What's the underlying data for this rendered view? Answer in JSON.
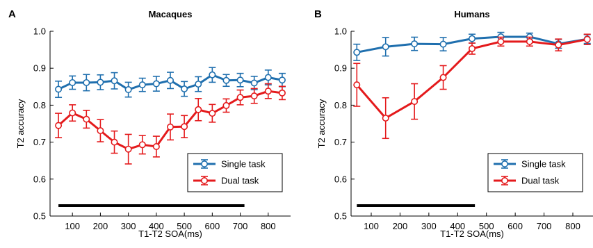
{
  "panels": [
    {
      "letter": "A",
      "title": "Macaques"
    },
    {
      "letter": "B",
      "title": "Humans"
    }
  ],
  "chart_data": [
    {
      "type": "line",
      "title": "Macaques",
      "panel_label": "A",
      "xlabel": "T1-T2 SOA(ms)",
      "ylabel": "T2 accuracy",
      "xlim": [
        20,
        880
      ],
      "ylim": [
        0.5,
        1.0
      ],
      "xticks": [
        100,
        200,
        300,
        400,
        500,
        600,
        700,
        800
      ],
      "yticks": [
        0.5,
        0.6,
        0.7,
        0.8,
        0.9,
        1.0
      ],
      "ytick_labels": [
        "0.5",
        "0.6",
        "0.7",
        "0.8",
        "0.9",
        "1.0"
      ],
      "grid": false,
      "legend_position": "lower-right",
      "significance_bar": [
        50,
        715
      ],
      "series": [
        {
          "name": "Single task",
          "color": "#1f6fae",
          "x": [
            50,
            100,
            150,
            200,
            250,
            300,
            350,
            400,
            450,
            500,
            550,
            600,
            650,
            700,
            750,
            800,
            850
          ],
          "y": [
            0.843,
            0.861,
            0.861,
            0.862,
            0.866,
            0.842,
            0.855,
            0.858,
            0.867,
            0.844,
            0.857,
            0.882,
            0.867,
            0.868,
            0.86,
            0.875,
            0.868
          ],
          "err": [
            0.022,
            0.018,
            0.022,
            0.02,
            0.022,
            0.02,
            0.018,
            0.02,
            0.022,
            0.02,
            0.02,
            0.02,
            0.016,
            0.018,
            0.018,
            0.02,
            0.018
          ]
        },
        {
          "name": "Dual task",
          "color": "#e41a1c",
          "x": [
            50,
            100,
            150,
            200,
            250,
            300,
            350,
            400,
            450,
            500,
            550,
            600,
            650,
            700,
            750,
            800,
            850
          ],
          "y": [
            0.745,
            0.779,
            0.762,
            0.731,
            0.7,
            0.681,
            0.693,
            0.688,
            0.741,
            0.742,
            0.788,
            0.778,
            0.799,
            0.821,
            0.825,
            0.838,
            0.833
          ],
          "err": [
            0.033,
            0.022,
            0.024,
            0.03,
            0.03,
            0.04,
            0.025,
            0.028,
            0.035,
            0.03,
            0.03,
            0.024,
            0.018,
            0.02,
            0.02,
            0.02,
            0.018
          ]
        }
      ]
    },
    {
      "type": "line",
      "title": "Humans",
      "panel_label": "B",
      "xlabel": "T1-T2 SOA(ms)",
      "ylabel": "T2 accuracy",
      "xlim": [
        30,
        870
      ],
      "ylim": [
        0.5,
        1.0
      ],
      "xticks": [
        100,
        200,
        300,
        400,
        500,
        600,
        700,
        800
      ],
      "yticks": [
        0.5,
        0.6,
        0.7,
        0.8,
        0.9,
        1.0
      ],
      "ytick_labels": [
        "0.5",
        "0.6",
        "0.7",
        "0.8",
        "0.9",
        "1.0"
      ],
      "grid": false,
      "legend_position": "lower-right",
      "significance_bar": [
        50,
        460
      ],
      "series": [
        {
          "name": "Single task",
          "color": "#1f6fae",
          "x": [
            50,
            150,
            250,
            350,
            450,
            550,
            650,
            750,
            850
          ],
          "y": [
            0.943,
            0.958,
            0.966,
            0.965,
            0.98,
            0.985,
            0.985,
            0.966,
            0.979
          ],
          "err": [
            0.022,
            0.025,
            0.018,
            0.018,
            0.012,
            0.012,
            0.01,
            0.012,
            0.012
          ]
        },
        {
          "name": "Dual task",
          "color": "#e41a1c",
          "x": [
            50,
            150,
            250,
            350,
            450,
            550,
            650,
            750,
            850
          ],
          "y": [
            0.855,
            0.765,
            0.81,
            0.875,
            0.953,
            0.972,
            0.972,
            0.963,
            0.978
          ],
          "err": [
            0.058,
            0.055,
            0.048,
            0.032,
            0.015,
            0.012,
            0.012,
            0.016,
            0.014
          ]
        }
      ]
    }
  ]
}
